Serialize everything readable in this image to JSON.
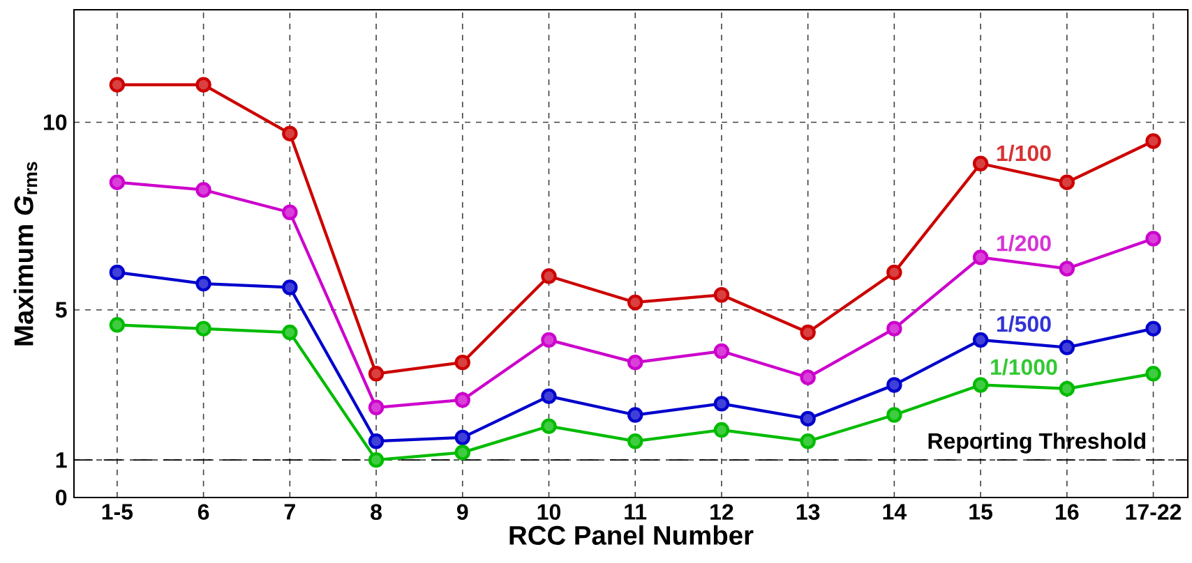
{
  "chart_data": {
    "type": "line",
    "xlabel": "RCC Panel Number",
    "ylabel": "Maximum *G*$_{rms}$",
    "categories": [
      "1-5",
      "6",
      "7",
      "8",
      "9",
      "10",
      "11",
      "12",
      "13",
      "14",
      "15",
      "16",
      "17-22"
    ],
    "series": [
      {
        "name": "1/100",
        "color": "#cc0000",
        "values": [
          11.0,
          11.0,
          9.7,
          3.3,
          3.6,
          5.9,
          5.2,
          5.4,
          4.4,
          6.0,
          8.9,
          8.4,
          9.5
        ]
      },
      {
        "name": "1/200",
        "color": "#cc00cc",
        "values": [
          8.4,
          8.2,
          7.6,
          2.4,
          2.6,
          4.2,
          3.6,
          3.9,
          3.2,
          4.5,
          6.4,
          6.1,
          6.9
        ]
      },
      {
        "name": "1/500",
        "color": "#0000cc",
        "values": [
          6.0,
          5.7,
          5.6,
          1.5,
          1.6,
          2.7,
          2.2,
          2.5,
          2.1,
          3.0,
          4.2,
          4.0,
          4.5
        ]
      },
      {
        "name": "1/1000",
        "color": "#00bb00",
        "values": [
          4.6,
          4.5,
          4.4,
          1.0,
          1.2,
          1.9,
          1.5,
          1.8,
          1.5,
          2.2,
          3.0,
          2.9,
          3.3
        ]
      }
    ],
    "ylim": [
      0,
      13
    ],
    "yticks": [
      0,
      1,
      5,
      10
    ],
    "grid": true,
    "legend": false,
    "marker": "circle",
    "line_style": "solid",
    "ref_lines": [
      {
        "axis": "y",
        "value": 1,
        "label": "Reporting Threshold",
        "color": "#000000",
        "line_style": "dashed"
      }
    ]
  }
}
